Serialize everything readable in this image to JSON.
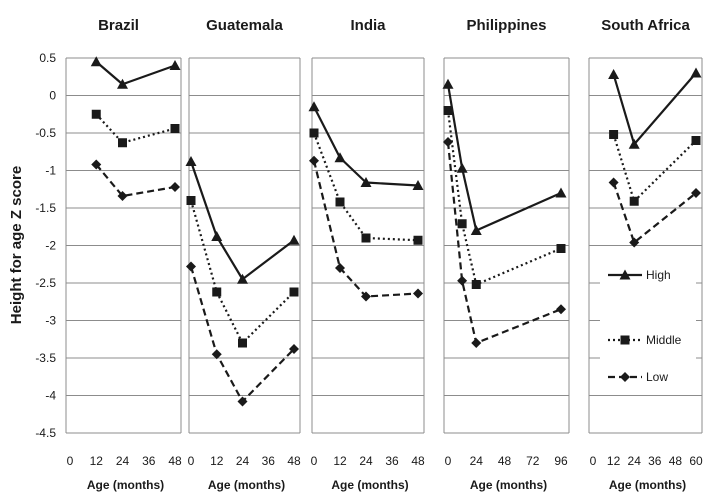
{
  "chart_data": {
    "type": "line",
    "ylabel": "Height for age Z score",
    "ylim": [
      -4.5,
      0.5
    ],
    "yticks": [
      "0.5",
      "0",
      "-0.5",
      "-1",
      "-1.5",
      "-2",
      "-2.5",
      "-3",
      "-3.5",
      "-4",
      "-4.5"
    ],
    "grid": true,
    "legend": {
      "placement": "bottom-right",
      "entries": [
        "High",
        "Middle",
        "Low"
      ]
    },
    "series_styles": {
      "High": {
        "line": "solid",
        "marker": "triangle",
        "color": "#1a1a1a"
      },
      "Middle": {
        "line": "dotted",
        "marker": "square",
        "color": "#1a1a1a"
      },
      "Low": {
        "line": "dashed",
        "marker": "diamond",
        "color": "#1a1a1a"
      }
    },
    "panels": [
      {
        "title": "Brazil",
        "xlabel": "Age (months)",
        "xticks": [
          "0",
          "12",
          "24",
          "36",
          "48"
        ],
        "xlim": [
          0,
          48
        ],
        "series": [
          {
            "name": "High",
            "x": [
              12,
              24,
              48
            ],
            "y": [
              0.45,
              0.15,
              0.4
            ]
          },
          {
            "name": "Middle",
            "x": [
              12,
              24,
              48
            ],
            "y": [
              -0.25,
              -0.63,
              -0.44
            ]
          },
          {
            "name": "Low",
            "x": [
              12,
              24,
              48
            ],
            "y": [
              -0.92,
              -1.34,
              -1.22
            ]
          }
        ]
      },
      {
        "title": "Guatemala",
        "xlabel": "Age (months)",
        "xticks": [
          "0",
          "12",
          "24",
          "36",
          "48"
        ],
        "xlim": [
          0,
          48
        ],
        "series": [
          {
            "name": "High",
            "x": [
              0,
              12,
              24,
              48
            ],
            "y": [
              -0.88,
              -1.88,
              -2.45,
              -1.93
            ]
          },
          {
            "name": "Middle",
            "x": [
              0,
              12,
              24,
              48
            ],
            "y": [
              -1.4,
              -2.62,
              -3.3,
              -2.62
            ]
          },
          {
            "name": "Low",
            "x": [
              0,
              12,
              24,
              48
            ],
            "y": [
              -2.28,
              -3.45,
              -4.08,
              -3.38
            ]
          }
        ]
      },
      {
        "title": "India",
        "xlabel": "Age (months)",
        "xticks": [
          "0",
          "12",
          "24",
          "36",
          "48"
        ],
        "xlim": [
          0,
          48
        ],
        "series": [
          {
            "name": "High",
            "x": [
              0,
              12,
              24,
              48
            ],
            "y": [
              -0.15,
              -0.83,
              -1.16,
              -1.2
            ]
          },
          {
            "name": "Middle",
            "x": [
              0,
              12,
              24,
              48
            ],
            "y": [
              -0.5,
              -1.42,
              -1.9,
              -1.93
            ]
          },
          {
            "name": "Low",
            "x": [
              0,
              12,
              24,
              48
            ],
            "y": [
              -0.87,
              -2.3,
              -2.68,
              -2.64
            ]
          }
        ]
      },
      {
        "title": "Philippines",
        "xlabel": "Age (months)",
        "xticks": [
          "0",
          "24",
          "48",
          "72",
          "96"
        ],
        "xlim": [
          0,
          96
        ],
        "series": [
          {
            "name": "High",
            "x": [
              0,
              12,
              24,
              96
            ],
            "y": [
              0.15,
              -0.97,
              -1.8,
              -1.3
            ]
          },
          {
            "name": "Middle",
            "x": [
              0,
              12,
              24,
              96
            ],
            "y": [
              -0.2,
              -1.71,
              -2.52,
              -2.04
            ]
          },
          {
            "name": "Low",
            "x": [
              0,
              12,
              24,
              96
            ],
            "y": [
              -0.62,
              -2.47,
              -3.3,
              -2.85
            ]
          }
        ]
      },
      {
        "title": "South Africa",
        "xlabel": "Age (months)",
        "xticks": [
          "0",
          "12",
          "24",
          "36",
          "48",
          "60"
        ],
        "xlim": [
          0,
          60
        ],
        "series": [
          {
            "name": "High",
            "x": [
              12,
              24,
              60
            ],
            "y": [
              0.28,
              -0.65,
              0.3
            ]
          },
          {
            "name": "Middle",
            "x": [
              12,
              24,
              60
            ],
            "y": [
              -0.52,
              -1.41,
              -0.6
            ]
          },
          {
            "name": "Low",
            "x": [
              12,
              24,
              60
            ],
            "y": [
              -1.16,
              -1.96,
              -1.3
            ]
          }
        ]
      }
    ]
  }
}
